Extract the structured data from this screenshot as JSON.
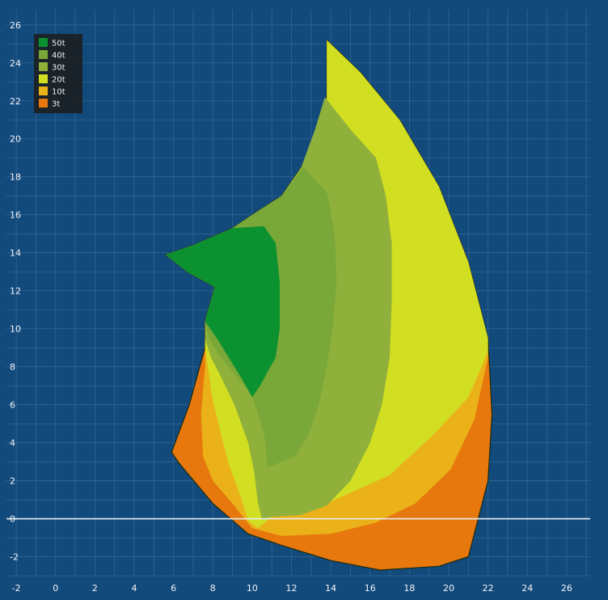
{
  "chart_data": {
    "type": "area",
    "title": "",
    "xlabel": "",
    "ylabel": "",
    "xlim": [
      -2.5,
      27.2
    ],
    "ylim": [
      -3.0,
      26.8
    ],
    "x_ticks": [
      -2,
      0,
      2,
      4,
      6,
      8,
      10,
      12,
      14,
      16,
      18,
      20,
      22,
      24,
      26
    ],
    "y_ticks": [
      -2,
      0,
      2,
      4,
      6,
      8,
      10,
      12,
      14,
      16,
      18,
      20,
      22,
      24,
      26
    ],
    "grid": true,
    "grid_minor_step": 1,
    "legend_position": "top-left",
    "background_color": "#134a7c",
    "grid_color": "#3d6e9c",
    "reference_line": {
      "axis": "y",
      "value": 0,
      "color": "#e6eef5"
    },
    "legend": [
      {
        "label": "50t",
        "color": "#0b9130"
      },
      {
        "label": "40t",
        "color": "#7aa838"
      },
      {
        "label": "30t",
        "color": "#8fb03a"
      },
      {
        "label": "20t",
        "color": "#d2de22"
      },
      {
        "label": "10t",
        "color": "#ebb118"
      },
      {
        "label": "3t",
        "color": "#e6780e"
      }
    ],
    "series": [
      {
        "name": "3t",
        "color": "#e6780e",
        "points": [
          [
            13.8,
            25.2
          ],
          [
            15.5,
            23.5
          ],
          [
            17.5,
            21.0
          ],
          [
            19.5,
            17.5
          ],
          [
            21.0,
            13.5
          ],
          [
            22.0,
            9.5
          ],
          [
            22.2,
            5.5
          ],
          [
            22.0,
            2.0
          ],
          [
            21.0,
            -2.0
          ],
          [
            19.5,
            -2.5
          ],
          [
            16.5,
            -2.7
          ],
          [
            14.0,
            -2.2
          ],
          [
            11.5,
            -1.4
          ],
          [
            9.8,
            -0.8
          ],
          [
            8.0,
            0.8
          ],
          [
            6.3,
            2.9
          ],
          [
            5.9,
            3.5
          ],
          [
            6.8,
            6.0
          ],
          [
            7.6,
            9.0
          ],
          [
            7.6,
            10.4
          ],
          [
            8.1,
            12.2
          ],
          [
            6.7,
            13.0
          ],
          [
            5.6,
            13.9
          ],
          [
            7.0,
            14.4
          ],
          [
            9.0,
            15.3
          ],
          [
            10.0,
            16.0
          ],
          [
            11.5,
            17.0
          ],
          [
            12.5,
            18.5
          ],
          [
            13.5,
            20.0
          ],
          [
            13.8,
            22.0
          ]
        ]
      },
      {
        "name": "10t",
        "color": "#ebb118",
        "points": [
          [
            13.8,
            25.2
          ],
          [
            15.5,
            23.5
          ],
          [
            17.5,
            21.0
          ],
          [
            19.5,
            17.5
          ],
          [
            21.0,
            13.5
          ],
          [
            22.0,
            9.5
          ],
          [
            22.0,
            8.5
          ],
          [
            21.3,
            5.2
          ],
          [
            20.1,
            2.6
          ],
          [
            18.3,
            0.8
          ],
          [
            16.3,
            -0.2
          ],
          [
            14.0,
            -0.8
          ],
          [
            11.5,
            -0.9
          ],
          [
            10.0,
            -0.5
          ],
          [
            9.0,
            0.8
          ],
          [
            8.0,
            2.0
          ],
          [
            7.5,
            3.3
          ],
          [
            7.4,
            5.5
          ],
          [
            7.6,
            8.0
          ],
          [
            7.6,
            10.4
          ],
          [
            8.1,
            12.2
          ],
          [
            6.7,
            13.0
          ],
          [
            5.6,
            13.9
          ],
          [
            7.0,
            14.4
          ],
          [
            9.0,
            15.3
          ],
          [
            10.0,
            16.0
          ],
          [
            11.5,
            17.0
          ],
          [
            12.5,
            18.5
          ],
          [
            13.5,
            20.0
          ],
          [
            13.8,
            22.0
          ]
        ]
      },
      {
        "name": "20t",
        "color": "#d2de22",
        "points": [
          [
            13.8,
            25.2
          ],
          [
            15.5,
            23.5
          ],
          [
            17.5,
            21.0
          ],
          [
            19.5,
            17.5
          ],
          [
            21.0,
            13.5
          ],
          [
            22.0,
            9.5
          ],
          [
            22.0,
            8.8
          ],
          [
            21.0,
            6.4
          ],
          [
            19.3,
            4.5
          ],
          [
            17.0,
            2.3
          ],
          [
            14.0,
            0.9
          ],
          [
            12.0,
            0.4
          ],
          [
            11.0,
            0.1
          ],
          [
            10.3,
            -0.5
          ],
          [
            9.8,
            -0.1
          ],
          [
            9.3,
            1.5
          ],
          [
            8.8,
            2.9
          ],
          [
            8.4,
            4.5
          ],
          [
            8.0,
            6.2
          ],
          [
            7.8,
            7.6
          ],
          [
            7.6,
            9.0
          ],
          [
            7.6,
            10.4
          ],
          [
            8.1,
            12.2
          ],
          [
            6.7,
            13.0
          ],
          [
            5.6,
            13.9
          ],
          [
            7.0,
            14.4
          ],
          [
            9.0,
            15.3
          ],
          [
            10.0,
            16.0
          ],
          [
            11.5,
            17.0
          ],
          [
            12.5,
            18.5
          ],
          [
            13.5,
            20.0
          ],
          [
            13.8,
            22.0
          ]
        ]
      },
      {
        "name": "30t",
        "color": "#8fb03a",
        "points": [
          [
            13.7,
            22.2
          ],
          [
            15.0,
            20.5
          ],
          [
            16.3,
            19.0
          ],
          [
            16.8,
            17.0
          ],
          [
            17.1,
            14.5
          ],
          [
            17.1,
            11.5
          ],
          [
            17.0,
            8.5
          ],
          [
            16.6,
            6.0
          ],
          [
            16.0,
            4.0
          ],
          [
            15.0,
            2.0
          ],
          [
            13.8,
            0.7
          ],
          [
            12.5,
            0.2
          ],
          [
            11.0,
            0.1
          ],
          [
            10.5,
            0.0
          ],
          [
            10.3,
            0.8
          ],
          [
            10.1,
            2.5
          ],
          [
            9.8,
            4.0
          ],
          [
            9.1,
            6.0
          ],
          [
            8.4,
            7.5
          ],
          [
            7.9,
            8.5
          ],
          [
            7.6,
            9.5
          ],
          [
            7.6,
            10.4
          ],
          [
            8.1,
            12.2
          ],
          [
            6.7,
            13.0
          ],
          [
            5.6,
            13.9
          ],
          [
            7.0,
            14.4
          ],
          [
            9.0,
            15.3
          ],
          [
            10.0,
            16.0
          ],
          [
            11.5,
            17.0
          ],
          [
            12.5,
            18.5
          ],
          [
            13.2,
            20.5
          ]
        ]
      },
      {
        "name": "40t",
        "color": "#7aa838",
        "points": [
          [
            12.6,
            18.5
          ],
          [
            13.8,
            17.2
          ],
          [
            14.2,
            15.0
          ],
          [
            14.3,
            12.5
          ],
          [
            14.1,
            10.0
          ],
          [
            13.8,
            8.0
          ],
          [
            13.4,
            6.0
          ],
          [
            12.9,
            4.5
          ],
          [
            12.2,
            3.3
          ],
          [
            10.8,
            2.7
          ],
          [
            10.6,
            4.5
          ],
          [
            10.0,
            6.5
          ],
          [
            9.2,
            7.5
          ],
          [
            8.4,
            8.5
          ],
          [
            7.8,
            9.5
          ],
          [
            7.6,
            10.4
          ],
          [
            8.1,
            12.2
          ],
          [
            6.7,
            13.0
          ],
          [
            5.6,
            13.9
          ],
          [
            7.0,
            14.4
          ],
          [
            9.0,
            15.3
          ],
          [
            10.0,
            16.0
          ],
          [
            11.5,
            17.0
          ]
        ]
      },
      {
        "name": "50t",
        "color": "#0b9130",
        "points": [
          [
            10.6,
            15.4
          ],
          [
            11.2,
            14.5
          ],
          [
            11.4,
            12.5
          ],
          [
            11.4,
            10.0
          ],
          [
            11.2,
            8.5
          ],
          [
            10.4,
            7.0
          ],
          [
            10.0,
            6.4
          ],
          [
            9.4,
            7.5
          ],
          [
            8.8,
            8.5
          ],
          [
            8.2,
            9.5
          ],
          [
            7.6,
            10.4
          ],
          [
            8.1,
            12.2
          ],
          [
            6.7,
            13.0
          ],
          [
            5.6,
            13.9
          ],
          [
            7.0,
            14.4
          ],
          [
            9.0,
            15.3
          ]
        ]
      }
    ]
  }
}
